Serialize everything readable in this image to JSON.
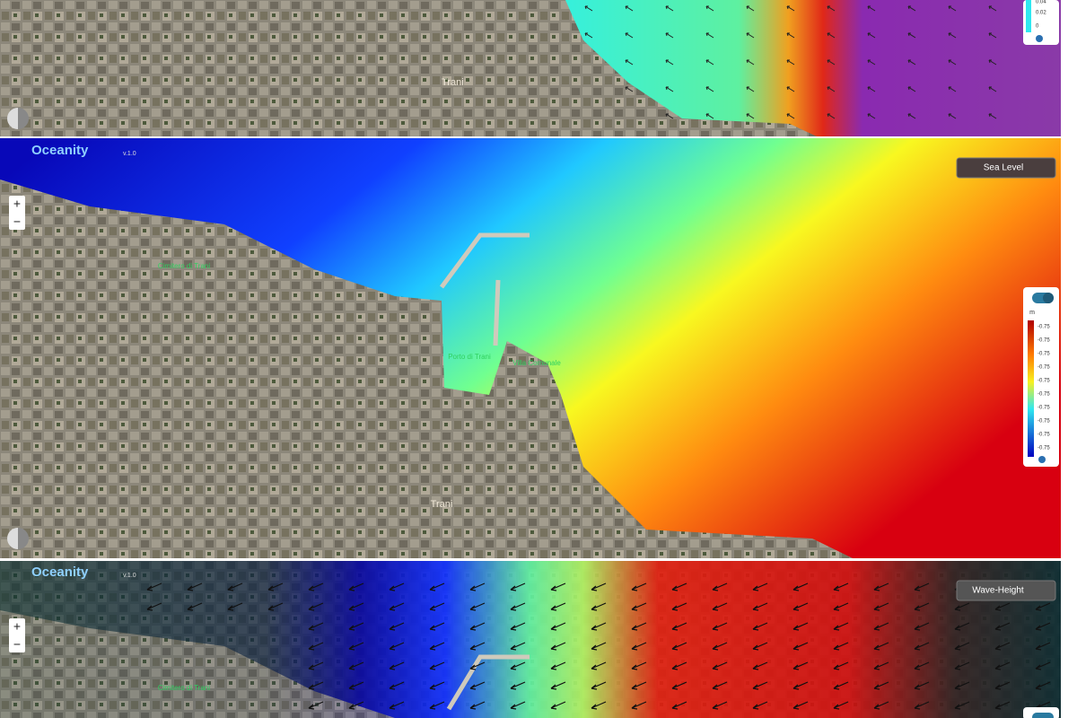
{
  "panels": [
    {
      "town": "Trani",
      "legend_ticks": [
        "0.04",
        "0.02",
        "0"
      ]
    },
    {
      "brand": "Oceanity",
      "version": "v.1.0",
      "layer": "Sea Level",
      "zoom_in": "+",
      "zoom_out": "−",
      "places": [
        "Cimitero di Trani",
        "Porto di Trani",
        "Villa Comunale",
        "Trani"
      ],
      "legend_unit": "m",
      "legend_ticks": [
        "-0.75",
        "-0.75",
        "-0.75",
        "-0.75",
        "-0.75",
        "-0.75",
        "-0.75",
        "-0.75",
        "-0.75",
        "-0.75"
      ]
    },
    {
      "brand": "Oceanity",
      "version": "v.1.0",
      "layer": "Wave-Height",
      "zoom_in": "+",
      "zoom_out": "−",
      "place": "Cimitero di Trani"
    }
  ]
}
